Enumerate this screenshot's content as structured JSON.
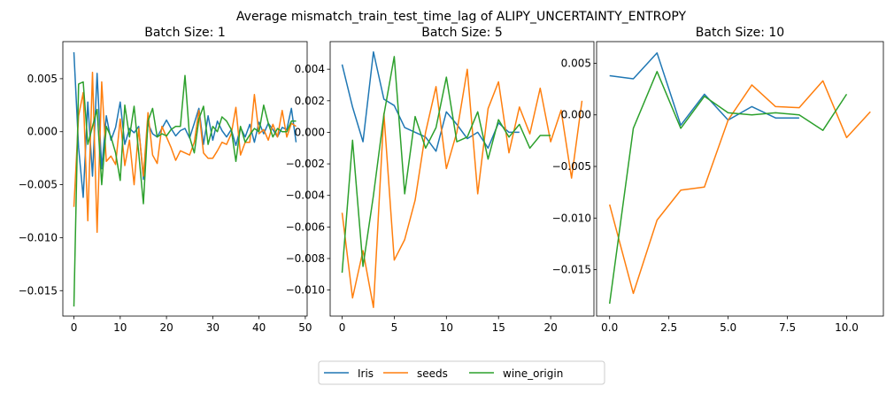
{
  "figure_title": "Average mismatch_train_test_time_lag of ALIPY_UNCERTAINTY_ENTROPY",
  "legend": [
    {
      "label": "Iris",
      "color": "#1f77b4"
    },
    {
      "label": "seeds",
      "color": "#ff7f0e"
    },
    {
      "label": "wine_origin",
      "color": "#2ca02c"
    }
  ],
  "chart_data": [
    {
      "type": "line",
      "title": "Batch Size: 1",
      "xlim": [
        -2.4,
        50.4
      ],
      "ylim": [
        -0.0174,
        0.0085
      ],
      "xticks": [
        0,
        10,
        20,
        30,
        40,
        50
      ],
      "xtick_labels": [
        "0",
        "10",
        "20",
        "30",
        "40",
        "50"
      ],
      "yticks": [
        -0.015,
        -0.01,
        -0.005,
        0.0,
        0.005
      ],
      "ytick_labels": [
        "−0.015",
        "−0.010",
        "−0.005",
        "0.000",
        "0.005"
      ],
      "series": [
        {
          "name": "Iris",
          "color": "#1f77b4",
          "x": [
            0,
            1,
            2,
            3,
            4,
            5,
            6,
            7,
            8,
            9,
            10,
            11,
            12,
            13,
            14,
            15,
            16,
            17,
            18,
            19,
            20,
            21,
            22,
            23,
            24,
            25,
            26,
            27,
            28,
            29,
            30,
            31,
            32,
            33,
            34,
            35,
            36,
            37,
            38,
            39,
            40,
            41,
            42,
            43,
            44,
            45,
            46,
            47,
            48
          ],
          "y": [
            0.0075,
            -0.0015,
            -0.0062,
            0.0028,
            -0.0042,
            0.0055,
            -0.0035,
            0.0015,
            -0.0008,
            0.0004,
            0.0028,
            -0.0012,
            0.0003,
            -0.0001,
            0.0005,
            -0.0045,
            0.0008,
            -0.0002,
            -0.0005,
            0.0003,
            0.0011,
            0.0003,
            -0.0004,
            0.0001,
            0.0003,
            -0.0006,
            0.0008,
            0.0022,
            -0.0012,
            0.0015,
            -0.0008,
            0.001,
            0.0001,
            -0.0005,
            0.0002,
            -0.0013,
            0.0004,
            -0.0005,
            0.0007,
            -0.001,
            0.0009,
            -0.0002,
            0.0008,
            0.0002,
            -0.0005,
            0.0004,
            0.0002,
            0.0022,
            -0.001
          ]
        },
        {
          "name": "seeds",
          "color": "#ff7f0e",
          "x": [
            0,
            1,
            2,
            3,
            4,
            5,
            6,
            7,
            8,
            9,
            10,
            11,
            12,
            13,
            14,
            15,
            16,
            17,
            18,
            19,
            20,
            21,
            22,
            23,
            24,
            25,
            26,
            27,
            28,
            29,
            30,
            31,
            32,
            33,
            34,
            35,
            36,
            37,
            38,
            39,
            40,
            41,
            42,
            43,
            44,
            45,
            46,
            47,
            48
          ],
          "y": [
            -0.0071,
            0.0015,
            0.0037,
            -0.0084,
            0.0056,
            -0.0095,
            0.0047,
            -0.0028,
            -0.0023,
            -0.0031,
            0.0012,
            -0.0032,
            -0.0008,
            -0.005,
            0.0003,
            -0.0042,
            0.0018,
            -0.0022,
            -0.003,
            0.0005,
            -0.0005,
            -0.0015,
            -0.0027,
            -0.0018,
            -0.002,
            -0.0022,
            -0.001,
            0.002,
            -0.002,
            -0.0025,
            -0.0025,
            -0.0018,
            -0.001,
            -0.0012,
            -0.0002,
            0.0023,
            -0.0022,
            -0.001,
            -0.001,
            0.0035,
            -0.0002,
            0.0002,
            -0.0008,
            0.0007,
            -0.0005,
            0.002,
            -0.0005,
            0.0008,
            0.0005
          ]
        },
        {
          "name": "wine_origin",
          "color": "#2ca02c",
          "x": [
            0,
            1,
            2,
            3,
            4,
            5,
            6,
            7,
            8,
            9,
            10,
            11,
            12,
            13,
            14,
            15,
            16,
            17,
            18,
            19,
            20,
            21,
            22,
            23,
            24,
            25,
            26,
            27,
            28,
            29,
            30,
            31,
            32,
            33,
            34,
            35,
            36,
            37,
            38,
            39,
            40,
            41,
            42,
            43,
            44,
            45,
            46,
            47,
            48
          ],
          "y": [
            -0.0165,
            0.0045,
            0.0047,
            -0.0012,
            0.0005,
            0.0021,
            -0.005,
            0.0005,
            -0.0005,
            -0.002,
            -0.0046,
            0.0025,
            -0.0005,
            0.0024,
            -0.002,
            -0.0068,
            0.001,
            0.0022,
            -0.0005,
            -0.0002,
            -0.0004,
            0.0002,
            0.0005,
            0.0005,
            0.0053,
            -0.0005,
            -0.002,
            0.0012,
            0.0024,
            -0.0012,
            0.0005,
            0.0,
            0.0014,
            0.001,
            0.0002,
            -0.0028,
            0.0005,
            -0.001,
            -0.0003,
            0.0003,
            0.0,
            0.0025,
            0.0008,
            -0.0005,
            0.0003,
            0.0,
            0.0,
            0.001,
            0.001
          ]
        }
      ]
    },
    {
      "type": "line",
      "title": "Batch Size: 5",
      "xlim": [
        -1.15,
        24.15
      ],
      "ylim": [
        -0.01165,
        0.00575
      ],
      "xticks": [
        0,
        5,
        10,
        15,
        20
      ],
      "xtick_labels": [
        "0",
        "5",
        "10",
        "15",
        "20"
      ],
      "yticks": [
        -0.01,
        -0.008,
        -0.006,
        -0.004,
        -0.002,
        0.0,
        0.002,
        0.004
      ],
      "ytick_labels": [
        "−0.010",
        "−0.008",
        "−0.006",
        "−0.004",
        "−0.002",
        "0.000",
        "0.002",
        "0.004"
      ],
      "series": [
        {
          "name": "Iris",
          "color": "#1f77b4",
          "x": [
            0,
            1,
            2,
            3,
            4,
            5,
            6,
            7,
            8,
            9,
            10,
            11,
            12,
            13,
            14,
            15,
            16,
            17
          ],
          "y": [
            0.0043,
            0.0016,
            -0.0006,
            0.0051,
            0.0021,
            0.0017,
            0.0003,
            0.0,
            -0.0003,
            -0.0012,
            0.0013,
            0.0005,
            -0.0004,
            0.0,
            -0.001,
            0.0006,
            0.0,
            0.0
          ]
        },
        {
          "name": "seeds",
          "color": "#ff7f0e",
          "x": [
            0,
            1,
            2,
            3,
            4,
            5,
            6,
            7,
            8,
            9,
            10,
            11,
            12,
            13,
            14,
            15,
            16,
            17,
            18,
            19,
            20,
            21,
            22,
            23
          ],
          "y": [
            -0.0051,
            -0.0105,
            -0.0075,
            -0.0111,
            0.0012,
            -0.0081,
            -0.0068,
            -0.0043,
            0.0,
            0.0029,
            -0.0023,
            0.0,
            0.004,
            -0.0039,
            0.0015,
            0.0032,
            -0.0013,
            0.0016,
            -0.0001,
            0.0028,
            -0.0006,
            0.0014,
            -0.0029,
            0.002
          ]
        },
        {
          "name": "wine_origin",
          "color": "#2ca02c",
          "x": [
            0,
            1,
            2,
            3,
            4,
            5,
            6,
            7,
            8,
            9,
            10,
            11,
            12,
            13,
            14,
            15,
            16,
            17,
            18,
            19,
            20
          ],
          "y": [
            -0.0089,
            -0.0005,
            -0.0085,
            -0.004,
            0.0011,
            0.0048,
            -0.0039,
            0.001,
            -0.001,
            0.0003,
            0.0035,
            -0.0006,
            -0.0003,
            0.0013,
            -0.0017,
            0.0008,
            -0.0003,
            0.0005,
            -0.001,
            -0.0002,
            -0.0002
          ]
        }
      ]
    },
    {
      "type": "line",
      "title": "Batch Size: 10",
      "xlim": [
        -0.55,
        11.55
      ],
      "ylim": [
        -0.0195,
        0.0071
      ],
      "xticks": [
        0.0,
        2.5,
        5.0,
        7.5,
        10.0
      ],
      "xtick_labels": [
        "0.0",
        "2.5",
        "5.0",
        "7.5",
        "10.0"
      ],
      "yticks": [
        -0.015,
        -0.01,
        -0.005,
        0.0,
        0.005
      ],
      "ytick_labels": [
        "−0.015",
        "−0.010",
        "−0.005",
        "0.000",
        "0.005"
      ],
      "series": [
        {
          "name": "Iris",
          "color": "#1f77b4",
          "x": [
            0,
            1,
            2,
            3,
            4,
            5,
            6,
            7,
            8
          ],
          "y": [
            0.0038,
            0.0035,
            0.006,
            -0.001,
            0.002,
            -0.0005,
            0.0008,
            -0.0003,
            -0.0003
          ]
        },
        {
          "name": "seeds",
          "color": "#ff7f0e",
          "x": [
            0,
            1,
            2,
            3,
            4,
            5,
            6,
            7,
            8,
            9,
            10,
            11
          ],
          "y": [
            -0.0087,
            -0.0173,
            -0.0102,
            -0.0073,
            -0.007,
            -0.0005,
            0.0029,
            0.0008,
            0.0007,
            0.0033,
            -0.0022,
            0.0003
          ]
        },
        {
          "name": "wine_origin",
          "color": "#2ca02c",
          "x": [
            0,
            1,
            2,
            3,
            4,
            5,
            6,
            7,
            8,
            9,
            10
          ],
          "y": [
            -0.0183,
            -0.0013,
            0.0042,
            -0.0013,
            0.0018,
            0.0002,
            0.0,
            0.0002,
            0.0,
            -0.0015,
            0.002
          ]
        }
      ]
    }
  ]
}
